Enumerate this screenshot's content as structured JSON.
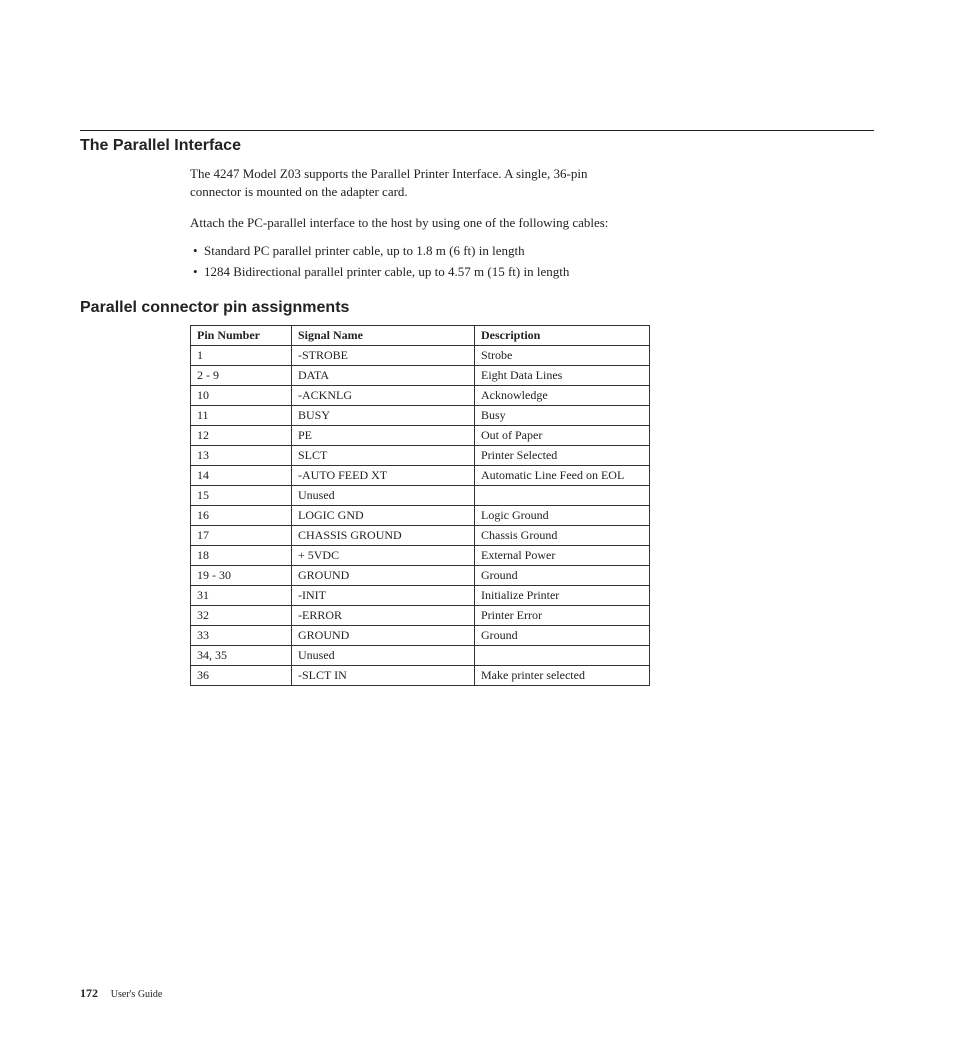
{
  "section_title": "The Parallel Interface",
  "intro_para": "The 4247 Model Z03 supports the Parallel Printer Interface. A single, 36-pin connector is mounted on the adapter card.",
  "attach_para": "Attach the PC-parallel interface to the host by using one of the following cables:",
  "bullets": [
    "Standard PC parallel printer cable, up to 1.8 m (6 ft) in length",
    "1284 Bidirectional parallel printer cable, up to 4.57 m (15 ft) in length"
  ],
  "subheading": "Parallel connector pin assignments",
  "columns": [
    "Pin Number",
    "Signal Name",
    "Description"
  ],
  "rows": [
    [
      "1",
      "-STROBE",
      "Strobe"
    ],
    [
      "2 - 9",
      "DATA",
      "Eight Data Lines"
    ],
    [
      "10",
      "-ACKNLG",
      "Acknowledge"
    ],
    [
      "11",
      "BUSY",
      "Busy"
    ],
    [
      "12",
      "PE",
      "Out of Paper"
    ],
    [
      "13",
      "SLCT",
      "Printer Selected"
    ],
    [
      "14",
      "-AUTO FEED XT",
      "Automatic Line Feed on EOL"
    ],
    [
      "15",
      "Unused",
      ""
    ],
    [
      "16",
      "LOGIC GND",
      "Logic Ground"
    ],
    [
      "17",
      "CHASSIS GROUND",
      "Chassis Ground"
    ],
    [
      "18",
      "+ 5VDC",
      "External Power"
    ],
    [
      "19 - 30",
      "GROUND",
      "Ground"
    ],
    [
      "31",
      "-INIT",
      "Initialize Printer"
    ],
    [
      "32",
      "-ERROR",
      "Printer Error"
    ],
    [
      "33",
      "GROUND",
      "Ground"
    ],
    [
      "34, 35",
      "Unused",
      ""
    ],
    [
      "36",
      "-SLCT IN",
      "Make printer selected"
    ]
  ],
  "page_number": "172",
  "footer_guide": "User's Guide"
}
